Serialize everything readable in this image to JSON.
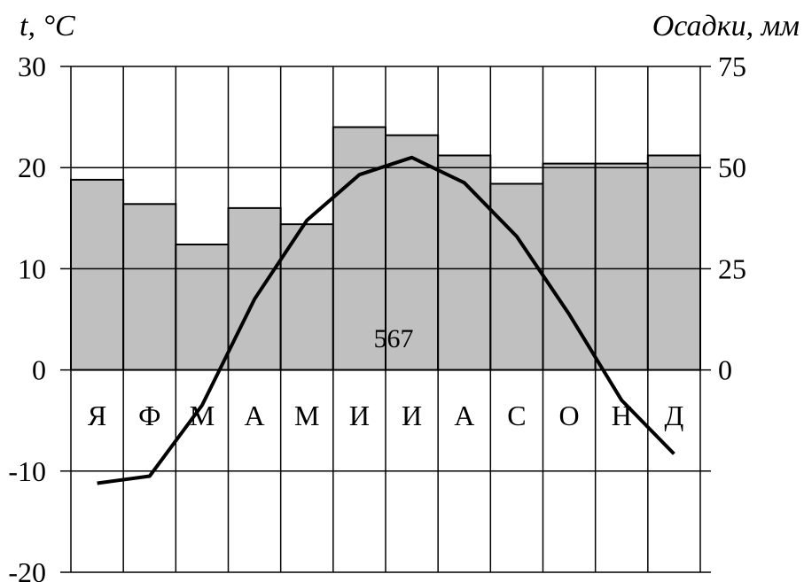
{
  "chart_data": {
    "type": "climatogram",
    "left_axis_title": "t, °C",
    "right_axis_title": "Осадки, мм",
    "months": [
      "Я",
      "Ф",
      "М",
      "А",
      "М",
      "И",
      "И",
      "А",
      "С",
      "О",
      "Н",
      "Д"
    ],
    "annual_precipitation_label": "567",
    "temperature": {
      "values": [
        -11.2,
        -10.5,
        -3.5,
        7.0,
        14.8,
        19.3,
        21.0,
        18.5,
        13.2,
        5.5,
        -3.0,
        -8.3
      ],
      "ylim": [
        -20,
        30
      ],
      "ticks": [
        "-20",
        "-10",
        "0",
        "10",
        "20",
        "30"
      ],
      "color": "#000000"
    },
    "precipitation": {
      "values": [
        47,
        41,
        31,
        40,
        36,
        60,
        58,
        53,
        46,
        51,
        51,
        53
      ],
      "ylim": [
        0,
        75
      ],
      "ticks": [
        "0",
        "25",
        "50",
        "75"
      ],
      "color": "#c0c0c0"
    },
    "grid": true
  }
}
